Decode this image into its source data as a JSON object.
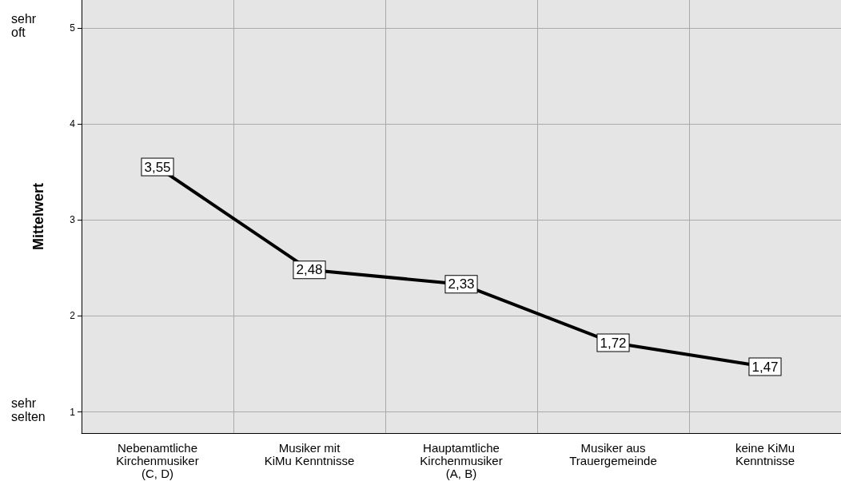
{
  "chart_data": {
    "type": "line",
    "ylabel": "Mittelwert",
    "categories": [
      "Nebenamtliche\nKirchenmusiker\n(C, D)",
      "Musiker mit\nKiMu Kenntnisse",
      "Hauptamtliche\nKirchenmusiker\n(A, B)",
      "Musiker aus\nTrauergemeinde",
      "keine KiMu\nKenntnisse"
    ],
    "series": [
      {
        "color": "#000000",
        "values": [
          3.55,
          2.48,
          2.33,
          1.72,
          1.47
        ],
        "value_labels": [
          "3,55",
          "2,48",
          "2,33",
          "1,72",
          "1,47"
        ]
      }
    ],
    "ylim": [
      0.78,
      5.29
    ],
    "yticks": [
      1,
      2,
      3,
      4,
      5
    ],
    "grid": true,
    "marker": "square",
    "line_style": "solid",
    "annotations": [
      "sehr\noft",
      "sehr\nselten"
    ]
  }
}
